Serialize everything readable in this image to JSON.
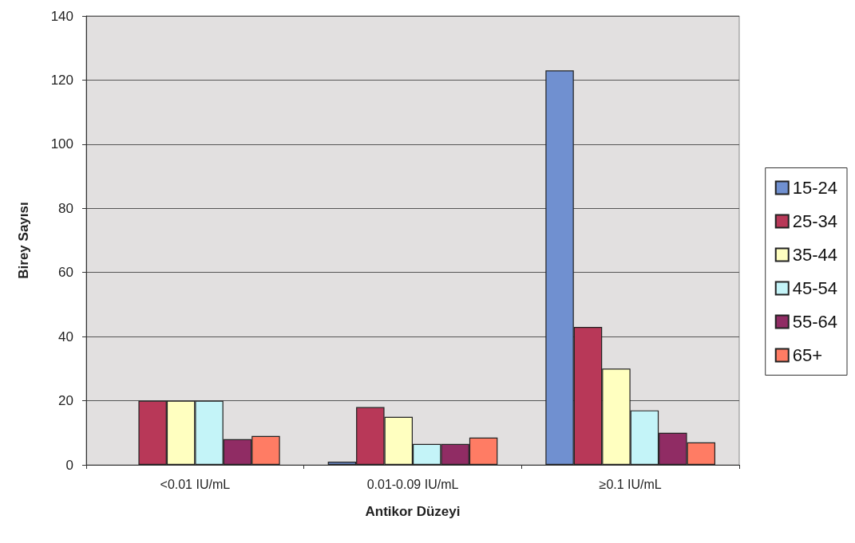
{
  "chart_data": {
    "type": "bar",
    "xlabel": "Antikor Düzeyi",
    "ylabel": "Birey Sayısı",
    "categories": [
      "<0.01 IU/mL",
      "0.01-0.09 IU/mL",
      "≥0.1 IU/mL"
    ],
    "series": [
      {
        "name": "15-24",
        "color": "#7090d0",
        "values": [
          null,
          1,
          123
        ]
      },
      {
        "name": "25-34",
        "color": "#b83858",
        "values": [
          20,
          18,
          43
        ]
      },
      {
        "name": "35-44",
        "color": "#ffffc0",
        "values": [
          20,
          15,
          30
        ]
      },
      {
        "name": "45-54",
        "color": "#c4f4f8",
        "values": [
          20,
          6.5,
          17
        ]
      },
      {
        "name": "55-64",
        "color": "#902c64",
        "values": [
          8,
          6.5,
          10
        ]
      },
      {
        "name": "65+",
        "color": "#ff7c64",
        "values": [
          9,
          8.5,
          7
        ]
      }
    ],
    "ylim": [
      0,
      140
    ],
    "yticks": [
      0,
      20,
      40,
      60,
      80,
      100,
      120,
      140
    ],
    "grid": "y",
    "legend": "right"
  }
}
